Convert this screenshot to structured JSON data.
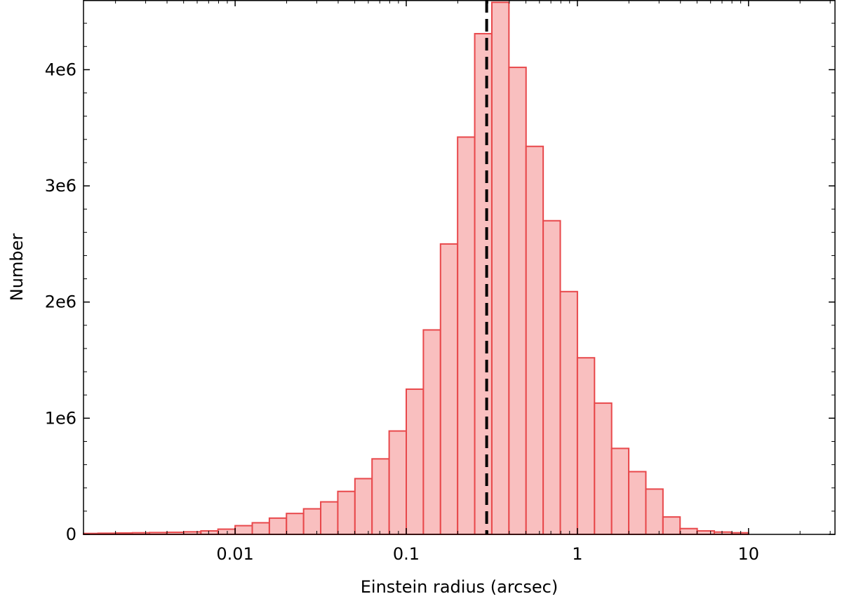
{
  "chart_data": {
    "type": "bar",
    "xlabel": "Einstein radius (arcsec)",
    "ylabel": "Number",
    "x_scale": "log",
    "xlim": [
      0.0013,
      32
    ],
    "ylim": [
      0,
      4600000.0
    ],
    "x_ticks": [
      {
        "value": 0.01,
        "label": "0.01"
      },
      {
        "value": 0.1,
        "label": "0.1"
      },
      {
        "value": 1,
        "label": "1"
      },
      {
        "value": 10,
        "label": "10"
      }
    ],
    "y_ticks": [
      {
        "value": 0,
        "label": "0"
      },
      {
        "value": 1000000,
        "label": "1e6"
      },
      {
        "value": 2000000,
        "label": "2e6"
      },
      {
        "value": 3000000,
        "label": "3e6"
      },
      {
        "value": 4000000,
        "label": "4e6"
      }
    ],
    "bar_fill": "#f9bfbf",
    "bar_edge": "#e8484b",
    "reference_line": {
      "x": 0.295,
      "style": "dashed",
      "color": "#000000"
    },
    "bins": [
      {
        "x0": 0.00129,
        "x1": 0.00158,
        "value": 8000
      },
      {
        "x0": 0.00158,
        "x1": 0.002,
        "value": 10000
      },
      {
        "x0": 0.002,
        "x1": 0.00251,
        "value": 12000
      },
      {
        "x0": 0.00251,
        "x1": 0.00316,
        "value": 14000
      },
      {
        "x0": 0.00316,
        "x1": 0.00398,
        "value": 16000
      },
      {
        "x0": 0.00398,
        "x1": 0.00501,
        "value": 18000
      },
      {
        "x0": 0.00501,
        "x1": 0.00631,
        "value": 22000
      },
      {
        "x0": 0.00631,
        "x1": 0.00794,
        "value": 30000
      },
      {
        "x0": 0.00794,
        "x1": 0.01,
        "value": 45000
      },
      {
        "x0": 0.01,
        "x1": 0.01259,
        "value": 75000
      },
      {
        "x0": 0.01259,
        "x1": 0.01585,
        "value": 100000
      },
      {
        "x0": 0.01585,
        "x1": 0.01995,
        "value": 140000
      },
      {
        "x0": 0.01995,
        "x1": 0.02512,
        "value": 180000
      },
      {
        "x0": 0.02512,
        "x1": 0.03162,
        "value": 220000
      },
      {
        "x0": 0.03162,
        "x1": 0.03981,
        "value": 280000
      },
      {
        "x0": 0.03981,
        "x1": 0.05012,
        "value": 370000
      },
      {
        "x0": 0.05012,
        "x1": 0.0631,
        "value": 480000
      },
      {
        "x0": 0.0631,
        "x1": 0.07943,
        "value": 650000
      },
      {
        "x0": 0.07943,
        "x1": 0.1,
        "value": 890000
      },
      {
        "x0": 0.1,
        "x1": 0.12589,
        "value": 1250000
      },
      {
        "x0": 0.12589,
        "x1": 0.15849,
        "value": 1760000
      },
      {
        "x0": 0.15849,
        "x1": 0.19953,
        "value": 2500000
      },
      {
        "x0": 0.19953,
        "x1": 0.25119,
        "value": 3420000
      },
      {
        "x0": 0.25119,
        "x1": 0.31623,
        "value": 4310000
      },
      {
        "x0": 0.31623,
        "x1": 0.39811,
        "value": 4580000
      },
      {
        "x0": 0.39811,
        "x1": 0.50119,
        "value": 4020000
      },
      {
        "x0": 0.50119,
        "x1": 0.63096,
        "value": 3340000
      },
      {
        "x0": 0.63096,
        "x1": 0.79433,
        "value": 2700000
      },
      {
        "x0": 0.79433,
        "x1": 1.0,
        "value": 2090000
      },
      {
        "x0": 1.0,
        "x1": 1.25893,
        "value": 1520000
      },
      {
        "x0": 1.25893,
        "x1": 1.58489,
        "value": 1130000
      },
      {
        "x0": 1.58489,
        "x1": 1.99526,
        "value": 740000
      },
      {
        "x0": 1.99526,
        "x1": 2.51189,
        "value": 540000
      },
      {
        "x0": 2.51189,
        "x1": 3.16228,
        "value": 390000
      },
      {
        "x0": 3.16228,
        "x1": 3.98107,
        "value": 150000
      },
      {
        "x0": 3.98107,
        "x1": 5.01187,
        "value": 50000
      },
      {
        "x0": 5.01187,
        "x1": 6.30957,
        "value": 30000
      },
      {
        "x0": 6.30957,
        "x1": 7.94328,
        "value": 20000
      },
      {
        "x0": 7.94328,
        "x1": 10.0,
        "value": 14000
      }
    ]
  }
}
